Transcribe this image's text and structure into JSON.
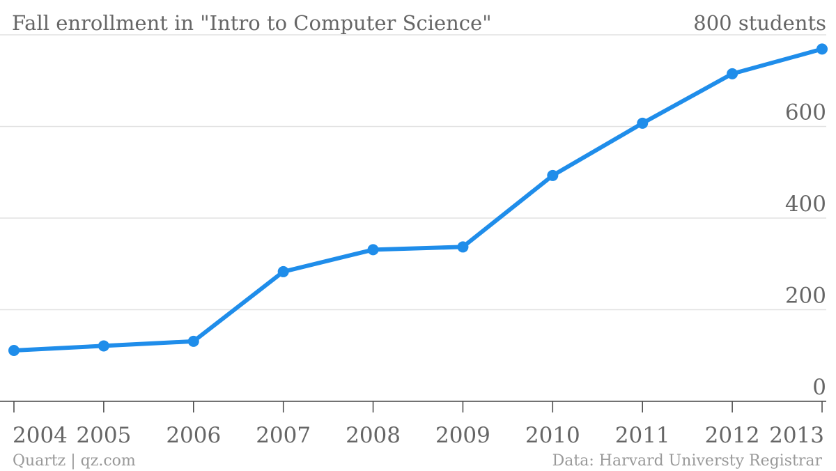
{
  "colors": {
    "line": "#1f8dea",
    "grid": "#e2e2e2",
    "axis": "#444444",
    "text": "#666666",
    "footer": "#999999"
  },
  "chart_data": {
    "type": "line",
    "title": "Fall enrollment in \"Intro to Computer Science\"",
    "ylabel": "800 students",
    "x": [
      "2004",
      "2005",
      "2006",
      "2007",
      "2008",
      "2009",
      "2010",
      "2011",
      "2012",
      "2013"
    ],
    "series": [
      {
        "values": [
          111,
          121,
          131,
          283,
          331,
          337,
          493,
          607,
          715,
          769
        ]
      }
    ],
    "ylim": [
      0,
      800
    ],
    "yticks": [
      "0",
      "200",
      "400",
      "600"
    ],
    "grid": true,
    "legend": "none"
  },
  "footer": {
    "left": "Quartz | qz.com",
    "right": "Data: Harvard Universty Registrar"
  }
}
